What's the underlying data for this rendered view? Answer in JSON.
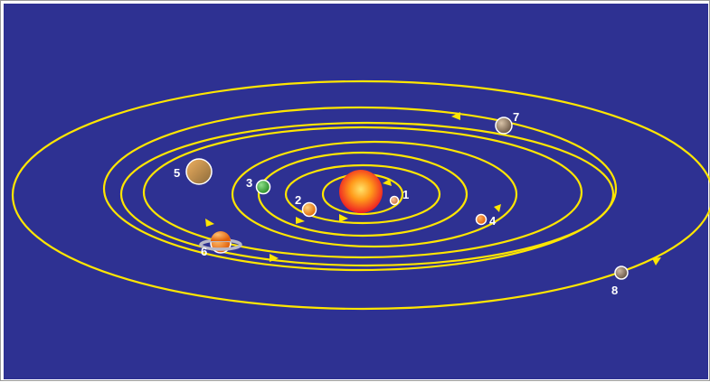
{
  "colors": {
    "background": "#2e3192",
    "orbit": "#ffe600",
    "label": "#ffffff"
  },
  "planets": [
    {
      "label": "1",
      "icon": "mercury-icon",
      "color": "#f2a065"
    },
    {
      "label": "2",
      "icon": "venus-icon",
      "color": "#f07f16"
    },
    {
      "label": "3",
      "icon": "earth-icon",
      "color": "#3aa63a"
    },
    {
      "label": "4",
      "icon": "mars-icon",
      "color": "#f07a1a"
    },
    {
      "label": "5",
      "icon": "jupiter-icon",
      "color": "#c2813a"
    },
    {
      "label": "6",
      "icon": "saturn-icon",
      "color": "#f08a1e"
    },
    {
      "label": "7",
      "icon": "uranus-icon",
      "color": "#8f7a66"
    },
    {
      "label": "8",
      "icon": "neptune-icon",
      "color": "#8d7a6a"
    }
  ]
}
